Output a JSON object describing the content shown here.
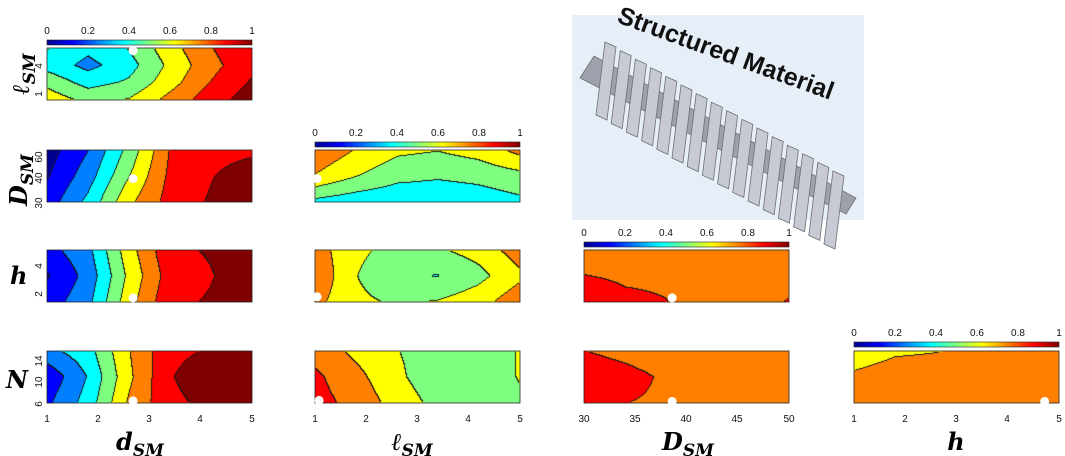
{
  "colorbar": {
    "ticks": [
      "0",
      "0.2",
      "0.4",
      "0.6",
      "0.8",
      "1"
    ],
    "colors": [
      "#00008f",
      "#0000ff",
      "#007fff",
      "#00ffff",
      "#7fff7f",
      "#ffff00",
      "#ff7f00",
      "#ff0000",
      "#7f0000"
    ]
  },
  "inset": {
    "label": "Structured Material",
    "background": "#e6eef8",
    "fin_color": "#c8cad3"
  },
  "axes": {
    "dSM": {
      "label_main": "d",
      "label_sub": "SM",
      "ticks": [
        "1",
        "2",
        "3",
        "4",
        "5"
      ]
    },
    "lSM": {
      "label_main": "ℓ",
      "label_sub": "SM",
      "ticks": [
        "1",
        "2",
        "3",
        "4",
        "5"
      ]
    },
    "DSM": {
      "label_main": "D",
      "label_sub": "SM",
      "ticks": [
        "30",
        "35",
        "40",
        "45",
        "50"
      ]
    },
    "h": {
      "label_main": "h",
      "label_sub": "",
      "ticks": [
        "1",
        "2",
        "3",
        "4",
        "5"
      ]
    },
    "N": {
      "label_main": "N",
      "label_sub": "",
      "ticks": [
        "6",
        "10",
        "14"
      ]
    }
  },
  "row_ticks": {
    "lSM": [
      "1",
      "4"
    ],
    "DSM": [
      "30",
      "40",
      "60"
    ],
    "h": [
      "2",
      "4"
    ],
    "N": [
      "6",
      "10",
      "14"
    ]
  },
  "chart_data": [
    {
      "type": "heatmap",
      "x_var": "d_SM",
      "y_var": "ℓ_SM",
      "xlim": [
        1,
        5
      ],
      "ylim": [
        1,
        5
      ],
      "colorbar_range": [
        0,
        1
      ],
      "values": [
        [
          0.45,
          0.36,
          0.45,
          0.62,
          0.77,
          0.88
        ],
        [
          0.4,
          0.3,
          0.4,
          0.58,
          0.74,
          0.86
        ],
        [
          0.52,
          0.4,
          0.46,
          0.62,
          0.78,
          0.9
        ],
        [
          0.62,
          0.52,
          0.56,
          0.7,
          0.84,
          0.94
        ]
      ]
    },
    {
      "type": "heatmap",
      "x_var": "d_SM",
      "y_var": "D_SM",
      "xlim": [
        1,
        5
      ],
      "ylim": [
        30,
        60
      ],
      "colorbar_range": [
        0,
        1
      ],
      "values": [
        [
          0.06,
          0.22,
          0.48,
          0.78,
          0.84,
          0.86
        ],
        [
          0.1,
          0.28,
          0.55,
          0.8,
          0.88,
          0.96
        ],
        [
          0.16,
          0.36,
          0.64,
          0.82,
          0.9,
          0.98
        ]
      ]
    },
    {
      "type": "heatmap",
      "x_var": "d_SM",
      "y_var": "h",
      "xlim": [
        1,
        5
      ],
      "ylim": [
        1,
        5
      ],
      "colorbar_range": [
        0,
        1
      ],
      "values": [
        [
          0.18,
          0.3,
          0.62,
          0.86,
          0.9,
          0.97
        ],
        [
          0.1,
          0.26,
          0.58,
          0.83,
          0.88,
          0.96
        ],
        [
          0.16,
          0.3,
          0.62,
          0.86,
          0.9,
          0.98
        ]
      ]
    },
    {
      "type": "heatmap",
      "x_var": "d_SM",
      "y_var": "N",
      "xlim": [
        1,
        5
      ],
      "ylim": [
        6,
        16
      ],
      "colorbar_range": [
        0,
        1
      ],
      "values": [
        [
          0.3,
          0.4,
          0.66,
          0.86,
          0.9,
          0.9
        ],
        [
          0.14,
          0.34,
          0.64,
          0.88,
          0.96,
          0.98
        ],
        [
          0.2,
          0.38,
          0.68,
          0.86,
          0.92,
          0.9
        ]
      ]
    },
    {
      "type": "heatmap",
      "x_var": "ℓ_SM",
      "y_var": "D_SM",
      "xlim": [
        1,
        5
      ],
      "ylim": [
        30,
        60
      ],
      "colorbar_range": [
        0,
        1
      ],
      "values": [
        [
          0.76,
          0.66,
          0.58,
          0.56,
          0.6,
          0.7
        ],
        [
          0.66,
          0.56,
          0.48,
          0.46,
          0.48,
          0.52
        ],
        [
          0.42,
          0.38,
          0.36,
          0.36,
          0.38,
          0.42
        ]
      ]
    },
    {
      "type": "heatmap",
      "x_var": "ℓ_SM",
      "y_var": "h",
      "xlim": [
        1,
        5
      ],
      "ylim": [
        1,
        5
      ],
      "colorbar_range": [
        0,
        1
      ],
      "values": [
        [
          0.72,
          0.58,
          0.52,
          0.54,
          0.6,
          0.72
        ],
        [
          0.76,
          0.56,
          0.46,
          0.44,
          0.52,
          0.64
        ],
        [
          0.7,
          0.58,
          0.54,
          0.56,
          0.62,
          0.74
        ]
      ]
    },
    {
      "type": "heatmap",
      "x_var": "ℓ_SM",
      "y_var": "N",
      "xlim": [
        1,
        5
      ],
      "ylim": [
        6,
        16
      ],
      "colorbar_range": [
        0,
        1
      ],
      "values": [
        [
          0.74,
          0.64,
          0.56,
          0.5,
          0.5,
          0.56
        ],
        [
          0.8,
          0.7,
          0.58,
          0.48,
          0.5,
          0.56
        ],
        [
          0.82,
          0.74,
          0.62,
          0.52,
          0.48,
          0.54
        ]
      ]
    },
    {
      "type": "heatmap",
      "x_var": "D_SM",
      "y_var": "h",
      "xlim": [
        30,
        50
      ],
      "ylim": [
        1,
        5
      ],
      "colorbar_range": [
        0,
        1
      ],
      "values": [
        [
          0.72,
          0.74,
          0.74,
          0.74,
          0.74,
          0.74
        ],
        [
          0.78,
          0.76,
          0.76,
          0.72,
          0.74,
          0.76
        ],
        [
          0.86,
          0.8,
          0.78,
          0.74,
          0.76,
          0.78
        ]
      ]
    },
    {
      "type": "heatmap",
      "x_var": "D_SM",
      "y_var": "N",
      "xlim": [
        30,
        50
      ],
      "ylim": [
        6,
        16
      ],
      "colorbar_range": [
        0,
        1
      ],
      "values": [
        [
          0.78,
          0.74,
          0.7,
          0.68,
          0.68,
          0.68
        ],
        [
          0.86,
          0.82,
          0.76,
          0.7,
          0.68,
          0.68
        ],
        [
          0.8,
          0.78,
          0.76,
          0.72,
          0.7,
          0.68
        ]
      ]
    },
    {
      "type": "heatmap",
      "x_var": "h",
      "y_var": "N",
      "xlim": [
        1,
        5
      ],
      "ylim": [
        6,
        16
      ],
      "colorbar_range": [
        0,
        1
      ],
      "values": [
        [
          0.56,
          0.64,
          0.66,
          0.7,
          0.72,
          0.74
        ],
        [
          0.7,
          0.76,
          0.76,
          0.74,
          0.74,
          0.74
        ],
        [
          0.74,
          0.76,
          0.74,
          0.74,
          0.74,
          0.74
        ]
      ]
    }
  ]
}
